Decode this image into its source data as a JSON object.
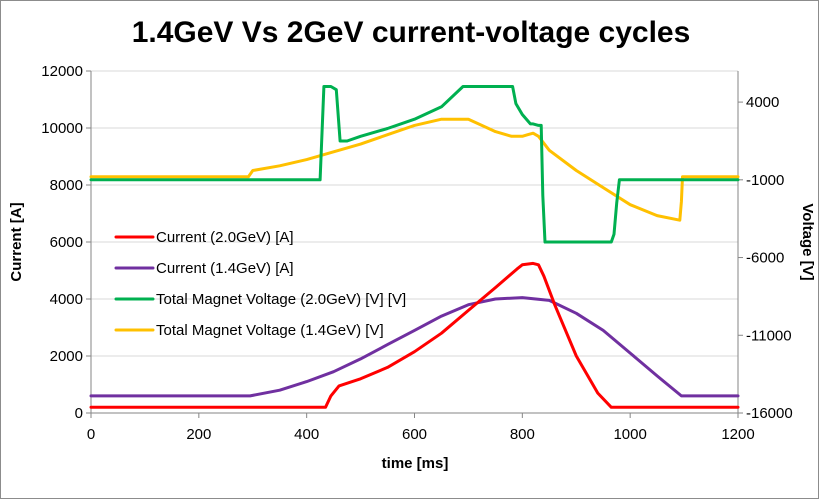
{
  "chart_data": {
    "type": "line",
    "title": "1.4GeV Vs 2GeV current-voltage cycles",
    "xlabel": "time [ms]",
    "ylabel": "Current [A]",
    "y2label": "Voltage [V]",
    "xlim": [
      0,
      1200
    ],
    "ylim": [
      0,
      12000
    ],
    "y2lim": [
      -16000,
      6000
    ],
    "xticks": [
      0,
      200,
      400,
      600,
      800,
      1000,
      1200
    ],
    "yticks": [
      0,
      2000,
      4000,
      6000,
      8000,
      10000,
      12000
    ],
    "y2ticks": [
      -16000,
      -11000,
      -6000,
      -1000,
      4000
    ],
    "grid": "horizontal",
    "legend_position": "left-middle",
    "series": [
      {
        "name": "Current (2.0GeV) [A]",
        "axis": "left",
        "color": "#ff0000",
        "x": [
          0,
          425,
          435,
          445,
          460,
          500,
          550,
          600,
          650,
          700,
          750,
          790,
          800,
          820,
          830,
          840,
          860,
          900,
          940,
          965,
          980,
          1000,
          1200
        ],
        "y": [
          200,
          200,
          200,
          600,
          950,
          1200,
          1600,
          2150,
          2800,
          3600,
          4400,
          5050,
          5200,
          5250,
          5200,
          4800,
          3800,
          2000,
          700,
          200,
          200,
          200,
          200
        ]
      },
      {
        "name": "Current (1.4GeV) [A]",
        "axis": "left",
        "color": "#7030a0",
        "x": [
          0,
          295,
          350,
          400,
          450,
          500,
          550,
          600,
          650,
          700,
          750,
          800,
          850,
          900,
          950,
          1000,
          1050,
          1095,
          1200
        ],
        "y": [
          600,
          600,
          800,
          1100,
          1450,
          1900,
          2400,
          2900,
          3400,
          3800,
          4000,
          4050,
          3950,
          3500,
          2900,
          2100,
          1300,
          600,
          600
        ]
      },
      {
        "name": "Total Magnet Voltage (2.0GeV) [V] [V]",
        "axis": "right",
        "color": "#00b050",
        "x": [
          0,
          425,
          432,
          445,
          455,
          462,
          475,
          500,
          550,
          600,
          650,
          690,
          720,
          745,
          760,
          765,
          782,
          788,
          800,
          815,
          820,
          830,
          835,
          838,
          842,
          880,
          930,
          960,
          965,
          970,
          975,
          980,
          1200
        ],
        "y": [
          -1000,
          -1000,
          5000,
          5000,
          4800,
          1500,
          1500,
          1800,
          2300,
          2900,
          3700,
          5000,
          5000,
          5000,
          5000,
          5000,
          5000,
          3900,
          3200,
          2600,
          2600,
          2500,
          2500,
          -2000,
          -5000,
          -5000,
          -5000,
          -5000,
          -5000,
          -4500,
          -2500,
          -1000,
          -1000
        ]
      },
      {
        "name": "Total Magnet Voltage (1.4GeV) [V]",
        "axis": "right",
        "color": "#ffc000",
        "x": [
          0,
          290,
          292,
          300,
          350,
          400,
          450,
          500,
          550,
          600,
          650,
          700,
          750,
          780,
          800,
          810,
          820,
          830,
          850,
          900,
          950,
          1000,
          1050,
          1092,
          1095,
          1097,
          1200
        ],
        "y": [
          -800,
          -800,
          -800,
          -400,
          -100,
          300,
          800,
          1300,
          1900,
          2500,
          2900,
          2900,
          2100,
          1800,
          1800,
          1900,
          2000,
          1800,
          900,
          -400,
          -1500,
          -2600,
          -3300,
          -3600,
          -2400,
          -800,
          -800
        ]
      }
    ]
  }
}
